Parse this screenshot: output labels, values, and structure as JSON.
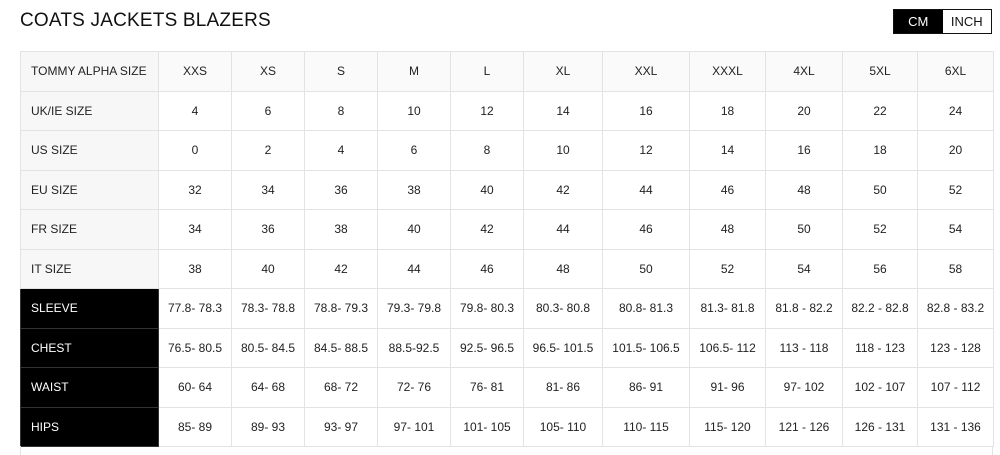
{
  "title": "COATS JACKETS BLAZERS",
  "units": {
    "options": [
      "CM",
      "INCH"
    ],
    "selected": "CM"
  },
  "table": {
    "rows": [
      {
        "label": "TOMMY ALPHA SIZE",
        "dark": false,
        "cells": [
          "XXS",
          "XS",
          "S",
          "M",
          "L",
          "XL",
          "XXL",
          "XXXL",
          "4XL",
          "5XL",
          "6XL"
        ]
      },
      {
        "label": "UK/IE SIZE",
        "dark": false,
        "cells": [
          "4",
          "6",
          "8",
          "10",
          "12",
          "14",
          "16",
          "18",
          "20",
          "22",
          "24"
        ]
      },
      {
        "label": "US SIZE",
        "dark": false,
        "cells": [
          "0",
          "2",
          "4",
          "6",
          "8",
          "10",
          "12",
          "14",
          "16",
          "18",
          "20"
        ]
      },
      {
        "label": "EU SIZE",
        "dark": false,
        "cells": [
          "32",
          "34",
          "36",
          "38",
          "40",
          "42",
          "44",
          "46",
          "48",
          "50",
          "52"
        ]
      },
      {
        "label": "FR SIZE",
        "dark": false,
        "cells": [
          "34",
          "36",
          "38",
          "40",
          "42",
          "44",
          "46",
          "48",
          "50",
          "52",
          "54"
        ]
      },
      {
        "label": "IT SIZE",
        "dark": false,
        "cells": [
          "38",
          "40",
          "42",
          "44",
          "46",
          "48",
          "50",
          "52",
          "54",
          "56",
          "58"
        ]
      },
      {
        "label": "SLEEVE",
        "dark": true,
        "cells": [
          "77.8- 78.3",
          "78.3- 78.8",
          "78.8- 79.3",
          "79.3- 79.8",
          "79.8- 80.3",
          "80.3- 80.8",
          "80.8- 81.3",
          "81.3- 81.8",
          "81.8 - 82.2",
          "82.2 - 82.8",
          "82.8 - 83.2"
        ]
      },
      {
        "label": "CHEST",
        "dark": true,
        "cells": [
          "76.5- 80.5",
          "80.5- 84.5",
          "84.5- 88.5",
          "88.5-92.5",
          "92.5- 96.5",
          "96.5- 101.5",
          "101.5- 106.5",
          "106.5- 112",
          "113 - 118",
          "118 - 123",
          "123 - 128"
        ]
      },
      {
        "label": "WAIST",
        "dark": true,
        "cells": [
          "60- 64",
          "64- 68",
          "68- 72",
          "72- 76",
          "76- 81",
          "81- 86",
          "86- 91",
          "91- 96",
          "97- 102",
          "102 - 107",
          "107 - 112"
        ]
      },
      {
        "label": "HIPS",
        "dark": true,
        "cells": [
          "85- 89",
          "89- 93",
          "93- 97",
          "97- 101",
          "101- 105",
          "105- 110",
          "110- 115",
          "115- 120",
          "121 - 126",
          "126 - 131",
          "131 - 136"
        ]
      }
    ]
  }
}
